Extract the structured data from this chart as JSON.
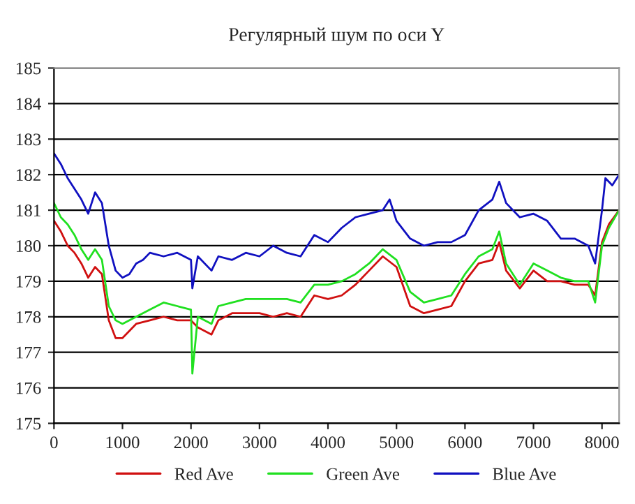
{
  "chart_data": {
    "type": "line",
    "title": "Регулярный шум по оси Y",
    "xlim": [
      0,
      8250
    ],
    "xticks": [
      0,
      1000,
      2000,
      3000,
      4000,
      5000,
      6000,
      7000,
      8000
    ],
    "ylim": [
      175,
      185
    ],
    "yticks": [
      175,
      176,
      177,
      178,
      179,
      180,
      181,
      182,
      183,
      184,
      185
    ],
    "grid": "y",
    "legend": "bottom",
    "marker": "none",
    "line_style": "solid",
    "series": [
      {
        "name": "Red Ave",
        "color": "#d01010",
        "x": [
          0,
          100,
          200,
          300,
          400,
          500,
          600,
          700,
          800,
          900,
          1000,
          1200,
          1400,
          1600,
          1800,
          2000,
          2100,
          2300,
          2400,
          2600,
          2800,
          3000,
          3200,
          3400,
          3600,
          3800,
          4000,
          4200,
          4400,
          4600,
          4800,
          5000,
          5200,
          5400,
          5600,
          5800,
          6000,
          6200,
          6400,
          6500,
          6600,
          6800,
          7000,
          7200,
          7400,
          7600,
          7800,
          7900,
          8000,
          8100,
          8250
        ],
        "values": [
          180.7,
          180.4,
          180.0,
          179.8,
          179.5,
          179.1,
          179.4,
          179.2,
          177.9,
          177.4,
          177.4,
          177.8,
          177.9,
          178.0,
          177.9,
          177.9,
          177.7,
          177.5,
          177.9,
          178.1,
          178.1,
          178.1,
          178.0,
          178.1,
          178.0,
          178.6,
          178.5,
          178.6,
          178.9,
          179.3,
          179.7,
          179.4,
          178.3,
          178.1,
          178.2,
          178.3,
          179.0,
          179.5,
          179.6,
          180.1,
          179.3,
          178.8,
          179.3,
          179.0,
          179.0,
          178.9,
          178.9,
          178.6,
          180.1,
          180.6,
          181.0
        ]
      },
      {
        "name": "Green Ave",
        "color": "#20e020",
        "x": [
          0,
          100,
          200,
          300,
          400,
          500,
          600,
          700,
          800,
          900,
          1000,
          1200,
          1400,
          1600,
          1800,
          2000,
          2020,
          2100,
          2300,
          2400,
          2600,
          2800,
          3000,
          3200,
          3400,
          3600,
          3800,
          4000,
          4200,
          4400,
          4600,
          4800,
          5000,
          5200,
          5400,
          5600,
          5800,
          6000,
          6200,
          6400,
          6500,
          6600,
          6800,
          7000,
          7200,
          7400,
          7600,
          7800,
          7900,
          8000,
          8100,
          8250
        ],
        "values": [
          181.2,
          180.8,
          180.6,
          180.3,
          179.9,
          179.6,
          179.9,
          179.6,
          178.3,
          177.9,
          177.8,
          178.0,
          178.2,
          178.4,
          178.3,
          178.2,
          176.4,
          178.0,
          177.8,
          178.3,
          178.4,
          178.5,
          178.5,
          178.5,
          178.5,
          178.4,
          178.9,
          178.9,
          179.0,
          179.2,
          179.5,
          179.9,
          179.6,
          178.7,
          178.4,
          178.5,
          178.6,
          179.2,
          179.7,
          179.9,
          180.4,
          179.5,
          178.9,
          179.5,
          179.3,
          179.1,
          179.0,
          179.0,
          178.4,
          180.0,
          180.5,
          181.0
        ]
      },
      {
        "name": "Blue Ave",
        "color": "#1010c0",
        "x": [
          0,
          100,
          200,
          300,
          400,
          500,
          600,
          700,
          800,
          900,
          1000,
          1100,
          1200,
          1300,
          1400,
          1600,
          1800,
          2000,
          2020,
          2100,
          2300,
          2400,
          2600,
          2800,
          3000,
          3200,
          3400,
          3600,
          3800,
          4000,
          4200,
          4400,
          4600,
          4800,
          4900,
          5000,
          5200,
          5400,
          5600,
          5800,
          6000,
          6200,
          6400,
          6500,
          6600,
          6800,
          7000,
          7200,
          7400,
          7600,
          7800,
          7900,
          8000,
          8050,
          8150,
          8250
        ],
        "values": [
          182.6,
          182.3,
          181.9,
          181.6,
          181.3,
          180.9,
          181.5,
          181.2,
          180.0,
          179.3,
          179.1,
          179.2,
          179.5,
          179.6,
          179.8,
          179.7,
          179.8,
          179.6,
          178.8,
          179.7,
          179.3,
          179.7,
          179.6,
          179.8,
          179.7,
          180.0,
          179.8,
          179.7,
          180.3,
          180.1,
          180.5,
          180.8,
          180.9,
          181.0,
          181.3,
          180.7,
          180.2,
          180.0,
          180.1,
          180.1,
          180.3,
          181.0,
          181.3,
          181.8,
          181.2,
          180.8,
          180.9,
          180.7,
          180.2,
          180.2,
          180.0,
          179.5,
          181.0,
          181.9,
          181.7,
          182.0
        ]
      }
    ]
  }
}
